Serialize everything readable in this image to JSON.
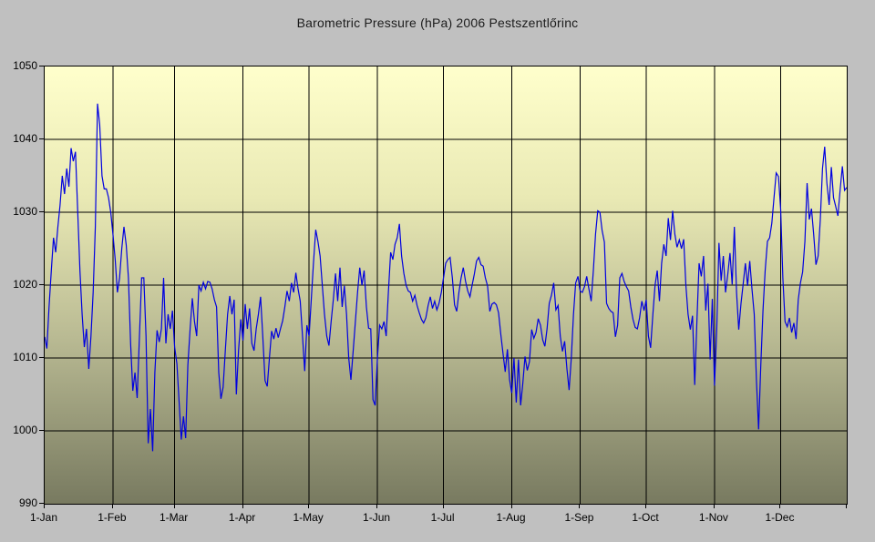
{
  "chart": {
    "title": "Barometric Pressure (hPa) 2006 Pestszentlőrinc"
  },
  "colors": {
    "page_background": "#c0c0c0",
    "plot_gradient_top": "#ffffcc",
    "plot_gradient_bottom": "#787a60",
    "gridline": "#000000",
    "series_line": "#0000e0",
    "text": "#000000"
  },
  "chart_data": {
    "type": "line",
    "title": "Barometric Pressure (hPa) 2006 Pestszentlőrinc",
    "xlabel": "",
    "ylabel": "",
    "x_unit": "day-of-year 2006 (daily values, 1 = 1-Jan)",
    "ylim": [
      990,
      1050
    ],
    "grid": true,
    "legend": false,
    "y_axis": {
      "ticks": [
        990,
        1000,
        1010,
        1020,
        1030,
        1040,
        1050
      ]
    },
    "x_axis": {
      "tick_days": [
        1,
        32,
        60,
        91,
        121,
        152,
        182,
        213,
        244,
        274,
        305,
        335
      ],
      "tick_labels": [
        "1-Jan",
        "1-Feb",
        "1-Mar",
        "1-Apr",
        "1-May",
        "1-Jun",
        "1-Jul",
        "1-Aug",
        "1-Sep",
        "1-Oct",
        "1-Nov",
        "1-Dec"
      ]
    },
    "series_name": "Barometric pressure (hPa)",
    "values": [
      1012.9,
      1011.3,
      1017,
      1022,
      1026.5,
      1024.5,
      1028,
      1031,
      1035,
      1032.5,
      1036,
      1033.5,
      1038.8,
      1037,
      1038.3,
      1030,
      1022,
      1016,
      1011.5,
      1014,
      1008.5,
      1013,
      1019,
      1028,
      1044.9,
      1042,
      1035,
      1033.2,
      1033.2,
      1032,
      1030,
      1027,
      1023.5,
      1019,
      1021,
      1025,
      1028,
      1025.5,
      1021,
      1012,
      1005.5,
      1008,
      1004.5,
      1013,
      1021,
      1021,
      1013,
      998.3,
      1003,
      997.2,
      1008,
      1013.8,
      1012.2,
      1014,
      1021,
      1012,
      1016,
      1014,
      1016.5,
      1011.5,
      1009.2,
      1004,
      998.8,
      1002,
      999,
      1009,
      1014,
      1018.2,
      1015,
      1013,
      1020,
      1019.2,
      1020.4,
      1019.5,
      1020.5,
      1020.4,
      1019.5,
      1018,
      1017,
      1008,
      1004.4,
      1006,
      1011,
      1016,
      1018.5,
      1016,
      1018,
      1005,
      1011,
      1015.3,
      1012.4,
      1017.4,
      1014,
      1016.8,
      1012,
      1011,
      1014,
      1016,
      1018.4,
      1013,
      1006.9,
      1006.1,
      1010,
      1013.7,
      1012.6,
      1014.1,
      1012.8,
      1014,
      1015.1,
      1017,
      1019.2,
      1017.8,
      1020.3,
      1019,
      1021.7,
      1019.5,
      1017.8,
      1013,
      1008.2,
      1014.5,
      1013,
      1018,
      1023,
      1027.6,
      1026,
      1024,
      1020,
      1016,
      1013,
      1011.7,
      1015,
      1018,
      1021.6,
      1017.8,
      1022.4,
      1017,
      1019.9,
      1016,
      1010,
      1007,
      1011,
      1015,
      1019,
      1022.4,
      1020,
      1022,
      1017,
      1014.1,
      1014,
      1004.3,
      1003.5,
      1010,
      1014.5,
      1014,
      1015,
      1013,
      1019,
      1024.5,
      1023.5,
      1025.6,
      1026.5,
      1028.4,
      1024,
      1021.6,
      1020,
      1019.2,
      1019,
      1017.8,
      1018.6,
      1017.2,
      1016.2,
      1015.3,
      1014.8,
      1015.5,
      1017.2,
      1018.4,
      1016.8,
      1017.8,
      1016.6,
      1017.5,
      1019,
      1021,
      1023,
      1023.5,
      1023.8,
      1021,
      1017.3,
      1016.4,
      1019,
      1021,
      1022.4,
      1020.5,
      1019.2,
      1018.4,
      1020,
      1021.5,
      1023.3,
      1023.8,
      1022.8,
      1022.6,
      1021,
      1019.9,
      1016.4,
      1017.4,
      1017.6,
      1017.3,
      1016.2,
      1013.3,
      1010.6,
      1008.1,
      1011.2,
      1007,
      1005.2,
      1010,
      1003.9,
      1009.8,
      1003.5,
      1006.5,
      1010.2,
      1008.3,
      1009.5,
      1013.9,
      1012.7,
      1013.5,
      1015.4,
      1014.5,
      1012.5,
      1011.6,
      1014,
      1017.5,
      1018.6,
      1020.3,
      1016.6,
      1017.2,
      1013,
      1010.9,
      1012.3,
      1008.5,
      1005.6,
      1010,
      1016,
      1020.3,
      1021.2,
      1019.2,
      1019,
      1019.8,
      1021.2,
      1019.5,
      1017.8,
      1022,
      1027,
      1030.2,
      1030,
      1027.5,
      1025.9,
      1017.5,
      1016.8,
      1016.4,
      1016.2,
      1012.9,
      1014.5,
      1021,
      1021.6,
      1020.5,
      1019.8,
      1019.2,
      1017,
      1015.3,
      1014.2,
      1014,
      1015.5,
      1017.8,
      1016.5,
      1018,
      1013,
      1011.4,
      1016,
      1020,
      1022,
      1017.8,
      1023,
      1025.6,
      1024,
      1029.2,
      1026.2,
      1030.2,
      1027,
      1025.2,
      1026.2,
      1025,
      1026.3,
      1020,
      1016,
      1013.9,
      1015.8,
      1006.3,
      1015,
      1023,
      1021.2,
      1024,
      1016.5,
      1020.2,
      1009.8,
      1018.1,
      1006.2,
      1014,
      1025.8,
      1020.6,
      1024,
      1019,
      1021.5,
      1024.4,
      1020.1,
      1028,
      1019,
      1013.9,
      1017.5,
      1020.2,
      1023,
      1019.9,
      1023.3,
      1019.5,
      1016,
      1007,
      1000.2,
      1009,
      1016.5,
      1022,
      1026,
      1026.5,
      1028.5,
      1032,
      1035.4,
      1034.9,
      1030.4,
      1021,
      1015,
      1014.3,
      1015.5,
      1013.5,
      1014.8,
      1012.6,
      1018,
      1020.3,
      1021.8,
      1026,
      1034,
      1029,
      1030.5,
      1027,
      1022.8,
      1024,
      1029,
      1036,
      1039,
      1034,
      1031,
      1036.2,
      1032,
      1030.8,
      1029.5,
      1033,
      1036.3,
      1033,
      1033.4
    ]
  }
}
